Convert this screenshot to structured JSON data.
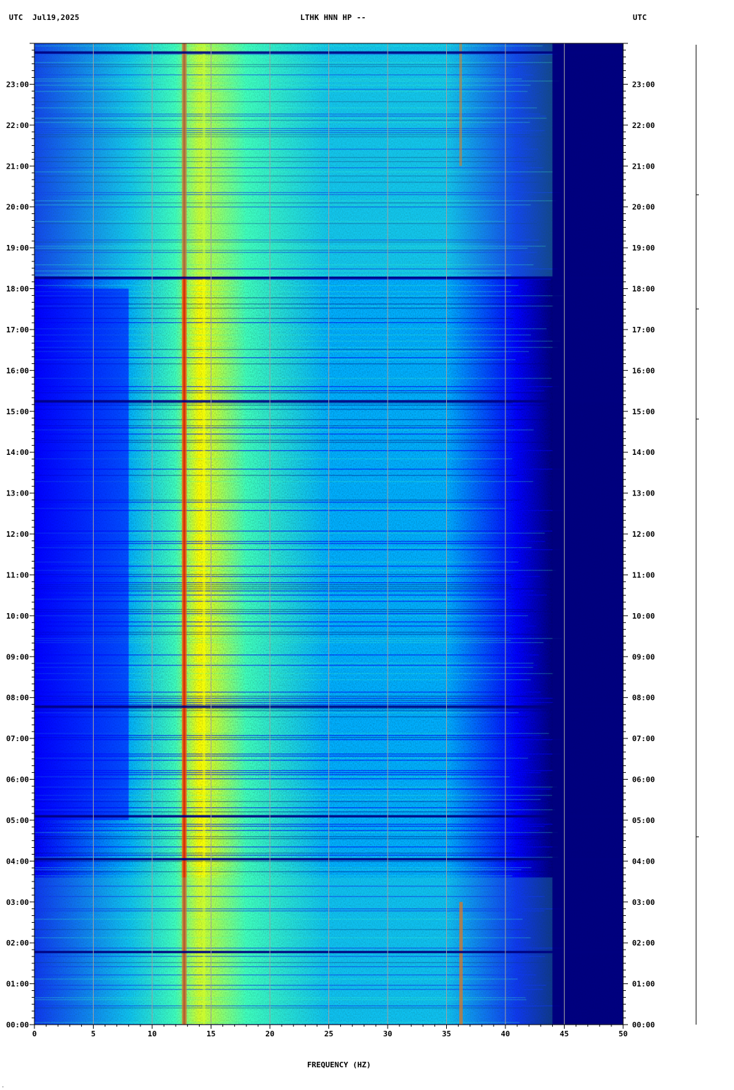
{
  "header": {
    "left": "UTC  Jul19,2025",
    "center": "LTHK HNN HP --",
    "right": "UTC"
  },
  "chart_data": {
    "type": "heatmap",
    "title": "LTHK HNN HP --",
    "date": "Jul19,2025",
    "timezone": "UTC",
    "xlabel": "FREQUENCY (HZ)",
    "xlim": [
      0,
      50
    ],
    "x_ticks": [
      0,
      5,
      10,
      15,
      20,
      25,
      30,
      35,
      40,
      45,
      50
    ],
    "y_ticks": [
      "00:00",
      "01:00",
      "02:00",
      "03:00",
      "04:00",
      "05:00",
      "06:00",
      "07:00",
      "08:00",
      "09:00",
      "10:00",
      "11:00",
      "12:00",
      "13:00",
      "14:00",
      "15:00",
      "16:00",
      "17:00",
      "18:00",
      "19:00",
      "20:00",
      "21:00",
      "22:00",
      "23:00"
    ],
    "ylim_hours": [
      0,
      24
    ],
    "grid_x": true,
    "colormap": [
      "#00007f",
      "#0000ff",
      "#00b0ff",
      "#3fffbf",
      "#ffff00",
      "#ff5000",
      "#c00000"
    ],
    "energy_features": {
      "persistent_line_hz": 12.7,
      "secondary_line_hz": 14.4,
      "intermittent_line_hz": 36.2,
      "rolloff_hz": 44,
      "quiet_bands_hours": [
        23.78,
        18.27,
        15.25,
        4.05,
        1.78,
        5.1,
        7.78
      ]
    }
  }
}
